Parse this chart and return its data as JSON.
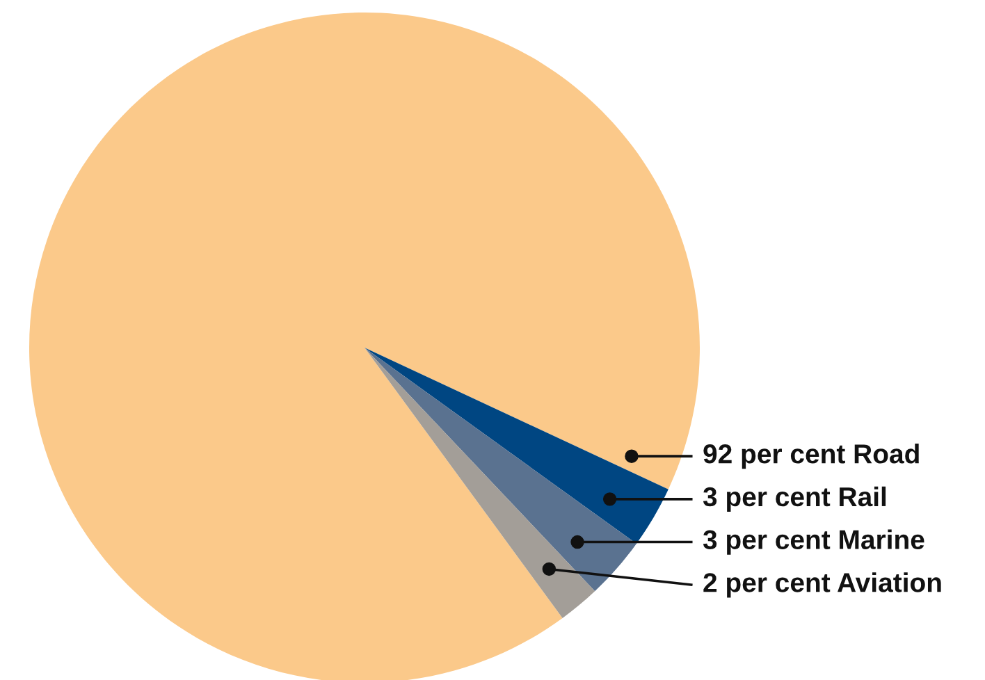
{
  "chart_data": {
    "type": "pie",
    "categories": [
      "Road",
      "Rail",
      "Marine",
      "Aviation"
    ],
    "values": [
      92,
      3,
      3,
      2
    ],
    "value_labels": [
      "92 per cent",
      "3 per cent",
      "3 per cent",
      "2 per cent"
    ],
    "colors": [
      "#fbc98a",
      "#004682",
      "#5a7290",
      "#a39e98"
    ]
  }
}
